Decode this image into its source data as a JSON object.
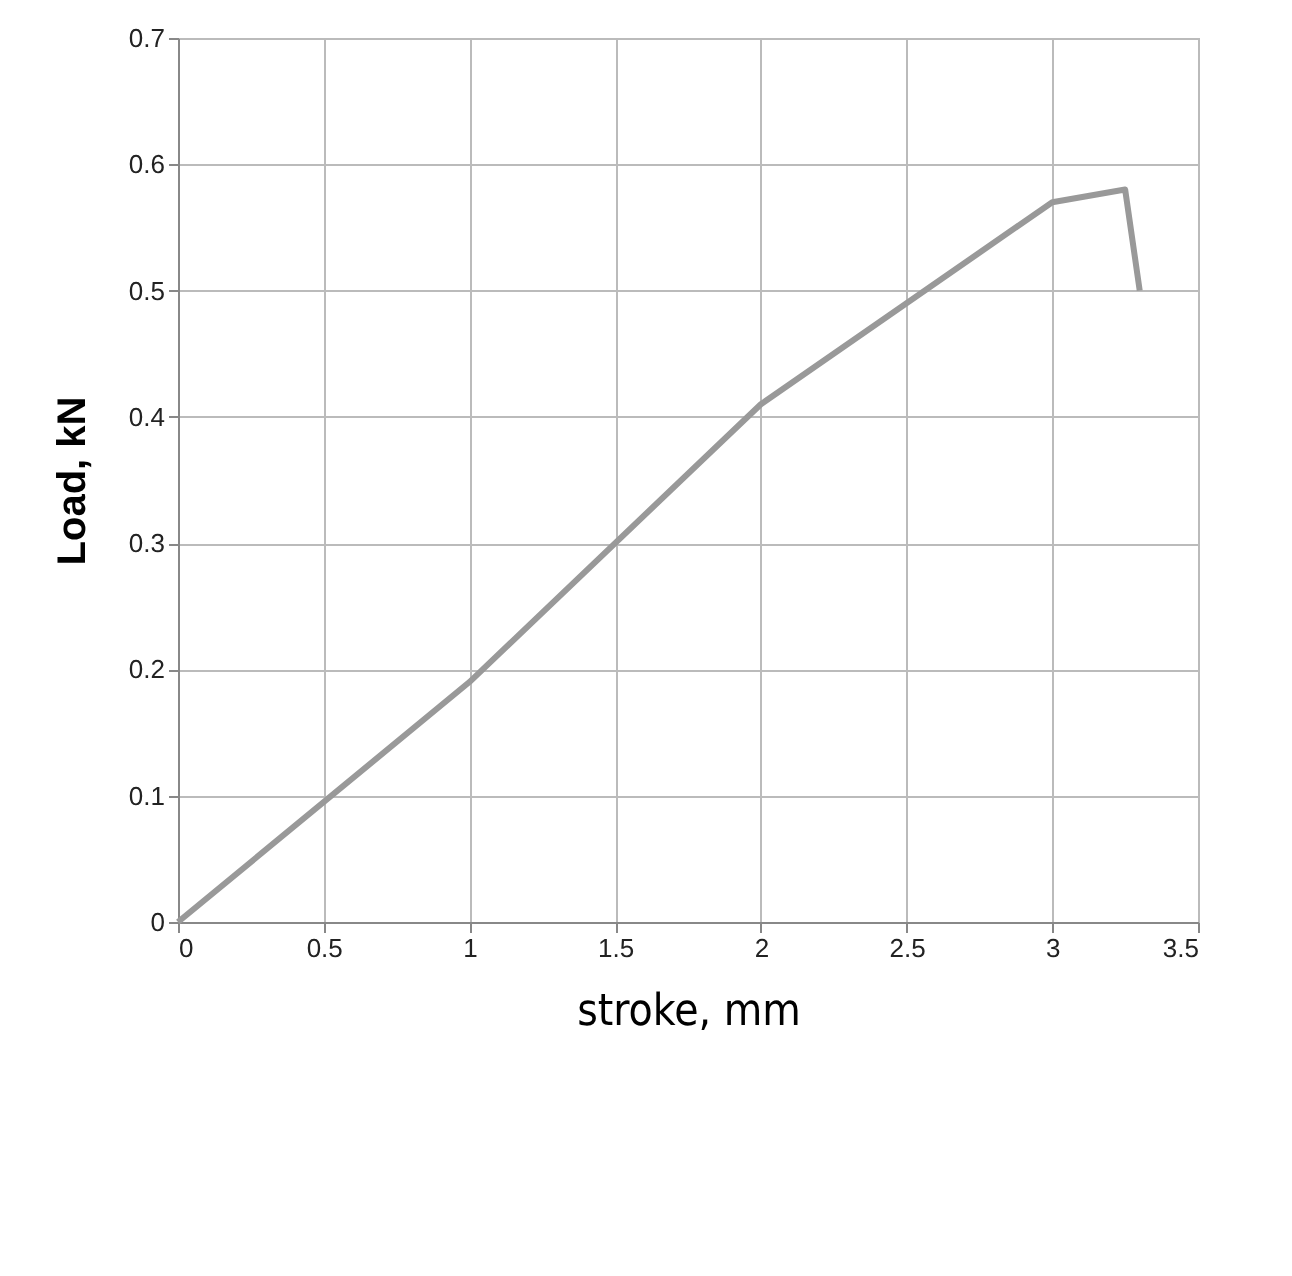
{
  "chart_data": {
    "type": "line",
    "xlabel": "stroke, mm",
    "ylabel": "Load, kN",
    "x": [
      0,
      1,
      2,
      3,
      3.25,
      3.3
    ],
    "series": [
      {
        "color": "#999999",
        "values": [
          0,
          0.19,
          0.41,
          0.57,
          0.58,
          0.5
        ]
      }
    ],
    "xlim": [
      0,
      3.5
    ],
    "xticks": [
      0,
      0.5,
      1,
      1.5,
      2,
      2.5,
      3,
      3.5
    ],
    "ylim": [
      0,
      0.7
    ],
    "yticks": [
      0,
      0.1,
      0.2,
      0.3,
      0.4,
      0.5,
      0.6,
      0.7
    ],
    "grid": true,
    "marker": "none",
    "line_style": "solid"
  }
}
